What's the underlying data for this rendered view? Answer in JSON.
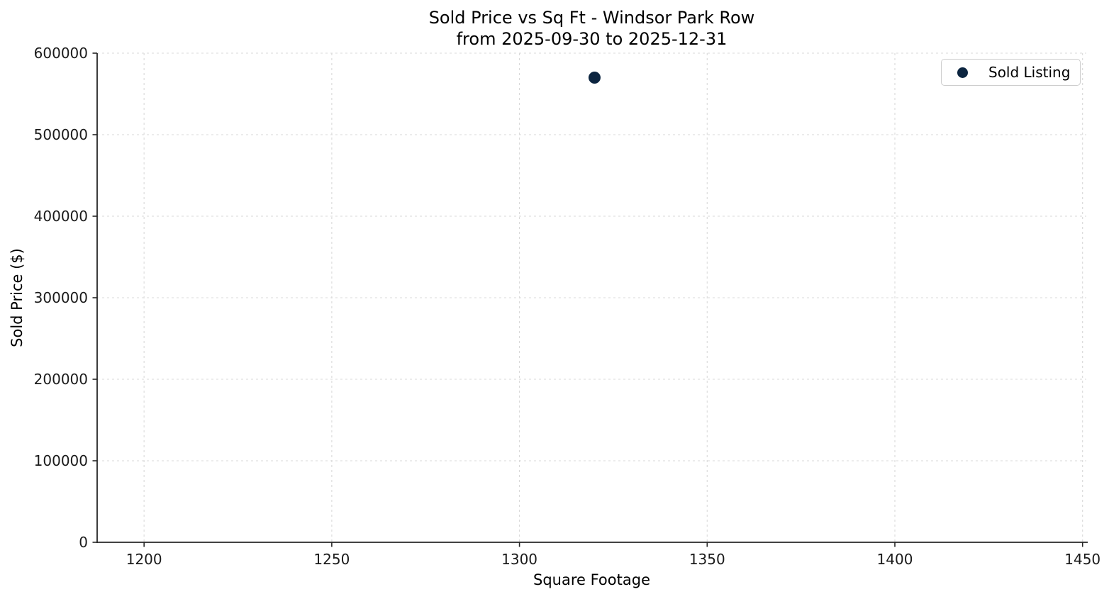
{
  "chart_data": {
    "type": "scatter",
    "title": "Sold Price vs Sq Ft - Windsor Park Row",
    "subtitle": "from 2025-09-30 to 2025-12-31",
    "xlabel": "Square Footage",
    "ylabel": "Sold Price ($)",
    "xlim": [
      1187.5,
      1451.0
    ],
    "ylim": [
      0,
      600000
    ],
    "x_ticks": [
      1200,
      1250,
      1300,
      1350,
      1400,
      1450
    ],
    "y_ticks": [
      0,
      100000,
      200000,
      300000,
      400000,
      500000,
      600000
    ],
    "grid": true,
    "grid_style": "dashed",
    "legend": {
      "position": "upper right",
      "entries": [
        {
          "label": "Sold Listing",
          "marker": "circle",
          "marker_color": "#0c2540"
        }
      ]
    },
    "series": [
      {
        "name": "Sold Listing",
        "marker": "circle",
        "marker_color": "#0c2540",
        "points": [
          {
            "x": 1320,
            "y": 570000
          }
        ]
      }
    ],
    "colors": {
      "background": "#ffffff",
      "grid": "#d9d9d9",
      "spine": "#262626",
      "tick": "#262626",
      "text": "#000000",
      "legend_border": "#cccccc"
    }
  }
}
